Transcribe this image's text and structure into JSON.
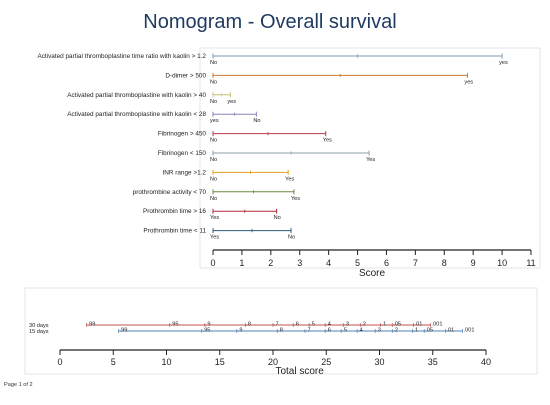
{
  "chart_data": {
    "type": "nomogram",
    "title": "Nomogram - Overall survival",
    "footer": "Page 1 of 2",
    "score_axis": {
      "label": "Score",
      "min": 0,
      "max": 11,
      "ticks": [
        "0",
        "1",
        "2",
        "3",
        "4",
        "5",
        "6",
        "7",
        "8",
        "9",
        "10",
        "11"
      ]
    },
    "variables": [
      {
        "label": "Activated partial thromboplastine time ratio with kaolin > 1.2",
        "start_label": "No",
        "end_label": "yes",
        "max_score": 10,
        "marker": 5,
        "color": "#7f99b5"
      },
      {
        "label": "D-dimer > 500",
        "start_label": "No",
        "end_label": "yes",
        "max_score": 8.8,
        "marker": 4.4,
        "color": "#c97a2b"
      },
      {
        "label": "Activated partial thromboplastine with kaolin > 40",
        "start_label": "No",
        "end_label": "yes",
        "max_score": 0.6,
        "marker": 0.3,
        "color": "#c8c070"
      },
      {
        "label": "Activated partial thromboplastine with kaolin < 28",
        "start_label": "yes",
        "end_label": "No",
        "max_score": 1.5,
        "marker": 0.75,
        "color": "#8e7fb8"
      },
      {
        "label": "Fibrinogen > 450",
        "start_label": "No",
        "end_label": "Yes",
        "max_score": 3.9,
        "marker": 1.9,
        "color": "#b83a4a"
      },
      {
        "label": "Fibrinogen < 150",
        "start_label": "No",
        "end_label": "Yes",
        "max_score": 5.4,
        "marker": 2.7,
        "color": "#8aa0a8"
      },
      {
        "label": "INR range >1.2",
        "start_label": "No",
        "end_label": "Yes",
        "max_score": 2.6,
        "marker": 1.3,
        "color": "#e0a020"
      },
      {
        "label": "prothrombine activity < 70",
        "start_label": "No",
        "end_label": "Yes",
        "max_score": 2.8,
        "marker": 1.4,
        "color": "#6a8a40"
      },
      {
        "label": "Prothrombin time > 16",
        "start_label": "Yes",
        "end_label": "No",
        "max_score": 2.2,
        "marker": 1.1,
        "color": "#b02a38"
      },
      {
        "label": "Prothrombin time < 11",
        "start_label": "Yes",
        "end_label": "No",
        "max_score": 2.7,
        "marker": 1.35,
        "color": "#2a5a7a"
      }
    ],
    "total_axis": {
      "label": "Total score",
      "min": 0,
      "max": 40,
      "ticks": [
        "0",
        "5",
        "10",
        "15",
        "20",
        "25",
        "30",
        "35",
        "40"
      ]
    },
    "survival_scales": [
      {
        "label": "30 days",
        "color": "#c0504d",
        "points": [
          {
            "total": 2.5,
            "label": ".99"
          },
          {
            "total": 10.3,
            "label": ".95"
          },
          {
            "total": 13.6,
            "label": ".9"
          },
          {
            "total": 17.4,
            "label": ".8"
          },
          {
            "total": 20.0,
            "label": ".7"
          },
          {
            "total": 21.9,
            "label": ".6"
          },
          {
            "total": 23.4,
            "label": ".5"
          },
          {
            "total": 24.9,
            "label": ".4"
          },
          {
            "total": 26.6,
            "label": ".3"
          },
          {
            "total": 28.2,
            "label": ".2"
          },
          {
            "total": 30.1,
            "label": ".1"
          },
          {
            "total": 31.2,
            "label": ".05"
          },
          {
            "total": 33.2,
            "label": ".01"
          },
          {
            "total": 34.8,
            "label": ".001"
          }
        ]
      },
      {
        "label": "15 days",
        "color": "#4f81bd",
        "points": [
          {
            "total": 5.5,
            "label": ".99"
          },
          {
            "total": 13.3,
            "label": ".95"
          },
          {
            "total": 16.6,
            "label": ".9"
          },
          {
            "total": 20.4,
            "label": ".8"
          },
          {
            "total": 23.0,
            "label": ".7"
          },
          {
            "total": 24.9,
            "label": ".6"
          },
          {
            "total": 26.4,
            "label": ".5"
          },
          {
            "total": 27.9,
            "label": ".4"
          },
          {
            "total": 29.6,
            "label": ".3"
          },
          {
            "total": 31.2,
            "label": ".2"
          },
          {
            "total": 33.1,
            "label": ".1"
          },
          {
            "total": 34.2,
            "label": ".05"
          },
          {
            "total": 36.2,
            "label": ".01"
          },
          {
            "total": 37.8,
            "label": ".001"
          }
        ]
      }
    ]
  }
}
